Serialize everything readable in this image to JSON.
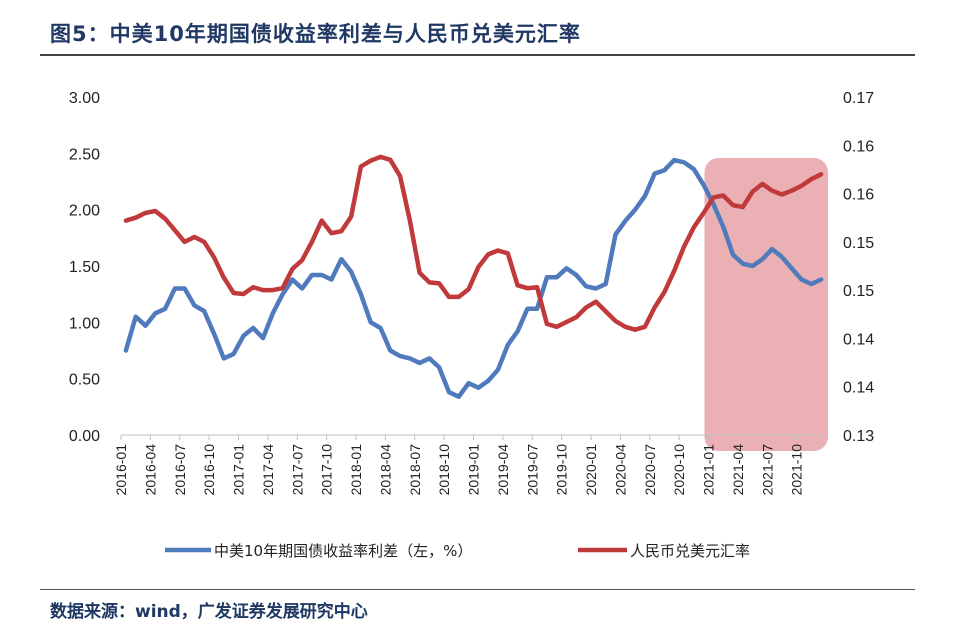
{
  "figure_title": "图5：中美10年期国债收益率利差与人民币兑美元汇率",
  "source": "数据来源：wind，广发证券发展研究中心",
  "colors": {
    "spread": "#4f7bbd",
    "cny": "#c0393b",
    "highlight": "#dd7c80",
    "title": "#1f3864"
  },
  "chart_data": {
    "type": "line",
    "x_tick_labels": [
      "2016-01",
      "2016-04",
      "2016-07",
      "2016-10",
      "2017-01",
      "2017-04",
      "2017-07",
      "2017-10",
      "2018-01",
      "2018-04",
      "2018-07",
      "2018-10",
      "2019-01",
      "2019-04",
      "2019-07",
      "2019-10",
      "2020-01",
      "2020-04",
      "2020-07",
      "2020-10",
      "2021-01",
      "2021-04",
      "2021-07",
      "2021-10"
    ],
    "y_left": {
      "ticks": [
        "3.00",
        "2.50",
        "2.00",
        "1.50",
        "1.00",
        "0.50",
        "0.00"
      ],
      "range": [
        0,
        3
      ]
    },
    "y_right": {
      "ticks": [
        "0.17",
        "0.16",
        "0.16",
        "0.15",
        "0.15",
        "0.14",
        "0.14",
        "0.13"
      ],
      "range": [
        0.13,
        0.165
      ]
    },
    "highlight_period": [
      "2021-01",
      "2021-12"
    ],
    "series": [
      {
        "name": "中美10年期国债收益率利差（左，%）",
        "axis": "left",
        "data": [
          [
            "2016-01",
            0.75
          ],
          [
            "2016-02",
            1.05
          ],
          [
            "2016-03",
            0.97
          ],
          [
            "2016-04",
            1.08
          ],
          [
            "2016-05",
            1.12
          ],
          [
            "2016-06",
            1.3
          ],
          [
            "2016-07",
            1.3
          ],
          [
            "2016-08",
            1.15
          ],
          [
            "2016-09",
            1.1
          ],
          [
            "2016-10",
            0.9
          ],
          [
            "2016-11",
            0.68
          ],
          [
            "2016-12",
            0.72
          ],
          [
            "2017-01",
            0.88
          ],
          [
            "2017-02",
            0.95
          ],
          [
            "2017-03",
            0.86
          ],
          [
            "2017-04",
            1.08
          ],
          [
            "2017-05",
            1.25
          ],
          [
            "2017-06",
            1.38
          ],
          [
            "2017-07",
            1.3
          ],
          [
            "2017-08",
            1.42
          ],
          [
            "2017-09",
            1.42
          ],
          [
            "2017-10",
            1.38
          ],
          [
            "2017-11",
            1.56
          ],
          [
            "2017-12",
            1.45
          ],
          [
            "2018-01",
            1.25
          ],
          [
            "2018-02",
            1.0
          ],
          [
            "2018-03",
            0.95
          ],
          [
            "2018-04",
            0.75
          ],
          [
            "2018-05",
            0.7
          ],
          [
            "2018-06",
            0.68
          ],
          [
            "2018-07",
            0.64
          ],
          [
            "2018-08",
            0.68
          ],
          [
            "2018-09",
            0.6
          ],
          [
            "2018-10",
            0.38
          ],
          [
            "2018-11",
            0.34
          ],
          [
            "2018-12",
            0.46
          ],
          [
            "2019-01",
            0.42
          ],
          [
            "2019-02",
            0.48
          ],
          [
            "2019-03",
            0.58
          ],
          [
            "2019-04",
            0.8
          ],
          [
            "2019-05",
            0.92
          ],
          [
            "2019-06",
            1.12
          ],
          [
            "2019-07",
            1.12
          ],
          [
            "2019-08",
            1.4
          ],
          [
            "2019-09",
            1.4
          ],
          [
            "2019-10",
            1.48
          ],
          [
            "2019-11",
            1.42
          ],
          [
            "2019-12",
            1.32
          ],
          [
            "2020-01",
            1.3
          ],
          [
            "2020-02",
            1.34
          ],
          [
            "2020-03",
            1.78
          ],
          [
            "2020-04",
            1.9
          ],
          [
            "2020-05",
            2.0
          ],
          [
            "2020-06",
            2.12
          ],
          [
            "2020-07",
            2.32
          ],
          [
            "2020-08",
            2.35
          ],
          [
            "2020-09",
            2.44
          ],
          [
            "2020-10",
            2.42
          ],
          [
            "2020-11",
            2.36
          ],
          [
            "2020-12",
            2.22
          ],
          [
            "2021-01",
            2.05
          ],
          [
            "2021-02",
            1.85
          ],
          [
            "2021-03",
            1.6
          ],
          [
            "2021-04",
            1.52
          ],
          [
            "2021-05",
            1.5
          ],
          [
            "2021-06",
            1.56
          ],
          [
            "2021-07",
            1.65
          ],
          [
            "2021-08",
            1.58
          ],
          [
            "2021-09",
            1.48
          ],
          [
            "2021-10",
            1.38
          ],
          [
            "2021-11",
            1.34
          ],
          [
            "2021-12",
            1.38
          ]
        ]
      },
      {
        "name": "人民币兑美元汇率",
        "axis": "right",
        "data": [
          [
            "2016-01",
            0.1522
          ],
          [
            "2016-02",
            0.1525
          ],
          [
            "2016-03",
            0.153
          ],
          [
            "2016-04",
            0.1532
          ],
          [
            "2016-05",
            0.1524
          ],
          [
            "2016-06",
            0.1512
          ],
          [
            "2016-07",
            0.15
          ],
          [
            "2016-08",
            0.1505
          ],
          [
            "2016-09",
            0.15
          ],
          [
            "2016-10",
            0.1484
          ],
          [
            "2016-11",
            0.1463
          ],
          [
            "2016-12",
            0.1447
          ],
          [
            "2017-01",
            0.1446
          ],
          [
            "2017-02",
            0.1453
          ],
          [
            "2017-03",
            0.145
          ],
          [
            "2017-04",
            0.145
          ],
          [
            "2017-05",
            0.1452
          ],
          [
            "2017-06",
            0.1472
          ],
          [
            "2017-07",
            0.1481
          ],
          [
            "2017-08",
            0.15
          ],
          [
            "2017-09",
            0.1522
          ],
          [
            "2017-10",
            0.1509
          ],
          [
            "2017-11",
            0.1511
          ],
          [
            "2017-12",
            0.1526
          ],
          [
            "2018-01",
            0.1578
          ],
          [
            "2018-02",
            0.1584
          ],
          [
            "2018-03",
            0.1588
          ],
          [
            "2018-04",
            0.1585
          ],
          [
            "2018-05",
            0.1568
          ],
          [
            "2018-06",
            0.1522
          ],
          [
            "2018-07",
            0.1468
          ],
          [
            "2018-08",
            0.1458
          ],
          [
            "2018-09",
            0.1457
          ],
          [
            "2018-10",
            0.1443
          ],
          [
            "2018-11",
            0.1443
          ],
          [
            "2018-12",
            0.1451
          ],
          [
            "2019-01",
            0.1474
          ],
          [
            "2019-02",
            0.1487
          ],
          [
            "2019-03",
            0.1491
          ],
          [
            "2019-04",
            0.1488
          ],
          [
            "2019-05",
            0.1455
          ],
          [
            "2019-06",
            0.1452
          ],
          [
            "2019-07",
            0.1453
          ],
          [
            "2019-08",
            0.1415
          ],
          [
            "2019-09",
            0.1412
          ],
          [
            "2019-10",
            0.1417
          ],
          [
            "2019-11",
            0.1422
          ],
          [
            "2019-12",
            0.1432
          ],
          [
            "2020-01",
            0.1438
          ],
          [
            "2020-02",
            0.1428
          ],
          [
            "2020-03",
            0.1418
          ],
          [
            "2020-04",
            0.1412
          ],
          [
            "2020-05",
            0.1409
          ],
          [
            "2020-06",
            0.1412
          ],
          [
            "2020-07",
            0.1432
          ],
          [
            "2020-08",
            0.1448
          ],
          [
            "2020-09",
            0.147
          ],
          [
            "2020-10",
            0.1495
          ],
          [
            "2020-11",
            0.1515
          ],
          [
            "2020-12",
            0.153
          ],
          [
            "2021-01",
            0.1546
          ],
          [
            "2021-02",
            0.1548
          ],
          [
            "2021-03",
            0.1538
          ],
          [
            "2021-04",
            0.1536
          ],
          [
            "2021-05",
            0.1552
          ],
          [
            "2021-06",
            0.156
          ],
          [
            "2021-07",
            0.1553
          ],
          [
            "2021-08",
            0.1549
          ],
          [
            "2021-09",
            0.1553
          ],
          [
            "2021-10",
            0.1558
          ],
          [
            "2021-11",
            0.1565
          ],
          [
            "2021-12",
            0.157
          ]
        ]
      }
    ]
  }
}
